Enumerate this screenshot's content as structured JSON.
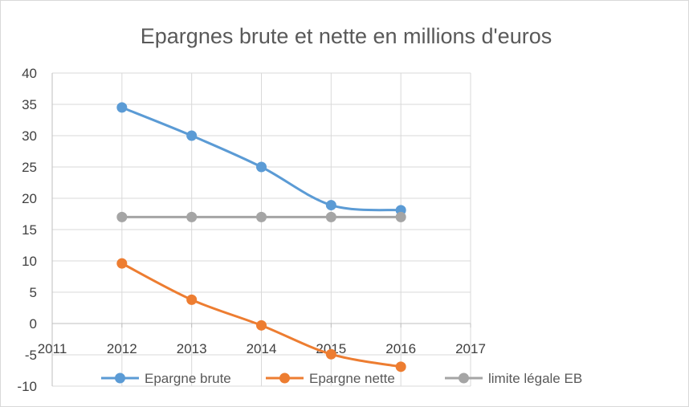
{
  "chart_data": {
    "type": "line",
    "title": "Epargnes brute et nette en millions d'euros",
    "xlabel": "",
    "ylabel": "",
    "xlim": [
      2011,
      2017
    ],
    "ylim": [
      -10,
      40
    ],
    "x_ticks": [
      "2011",
      "2012",
      "2013",
      "2014",
      "2015",
      "2016",
      "2017"
    ],
    "y_ticks": [
      "-10",
      "-5",
      "0",
      "5",
      "10",
      "15",
      "20",
      "25",
      "30",
      "35",
      "40"
    ],
    "grid": true,
    "legend_position": "bottom",
    "x": [
      2012,
      2013,
      2014,
      2015,
      2016
    ],
    "series": [
      {
        "name": "Epargne brute",
        "color": "#5b9bd5",
        "values": [
          34.5,
          30,
          25,
          18.9,
          18.1
        ]
      },
      {
        "name": "Epargne nette",
        "color": "#ed7d31",
        "values": [
          9.6,
          3.8,
          -0.3,
          -4.9,
          -6.9
        ]
      },
      {
        "name": "limite légale EB",
        "color": "#a5a5a5",
        "values": [
          17,
          17,
          17,
          17,
          17
        ]
      }
    ]
  }
}
